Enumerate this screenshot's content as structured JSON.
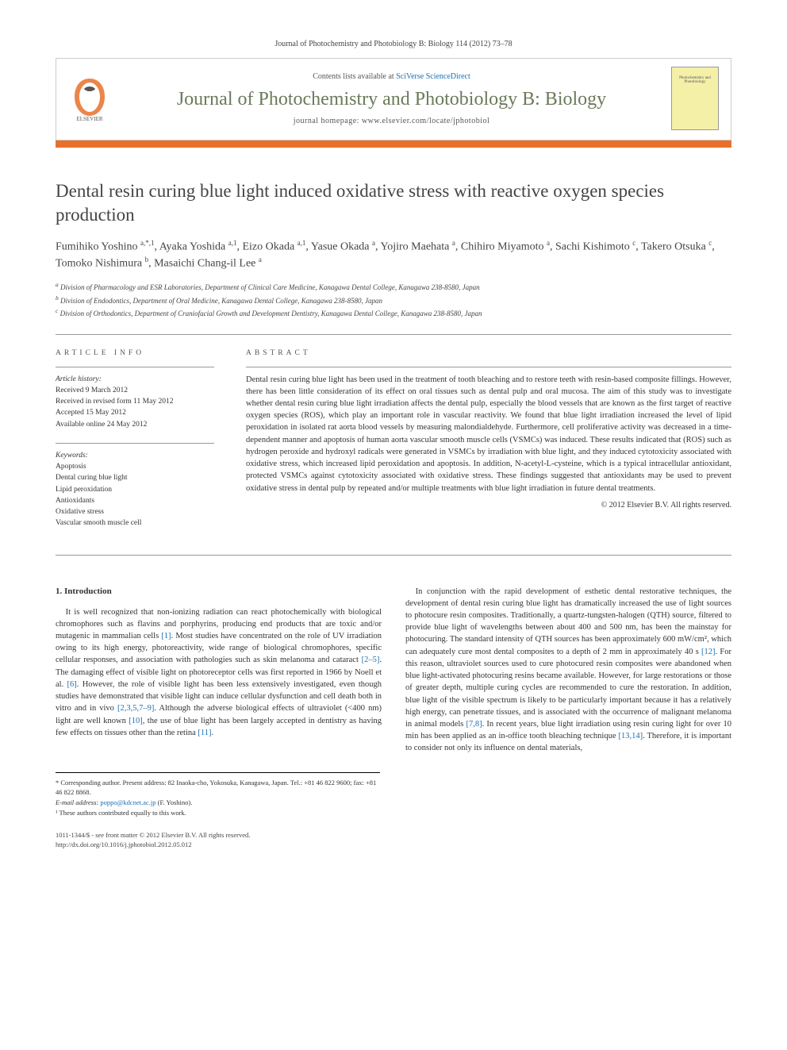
{
  "citation": "Journal of Photochemistry and Photobiology B: Biology 114 (2012) 73–78",
  "header": {
    "contents_prefix": "Contents lists available at ",
    "contents_link": "SciVerse ScienceDirect",
    "journal": "Journal of Photochemistry and Photobiology B: Biology",
    "homepage_label": "journal homepage: ",
    "homepage_url": "www.elsevier.com/locate/jphotobiol",
    "cover_text": "Photochemistry and Photobiology",
    "colors": {
      "orange_bar": "#e8702a",
      "journal_text": "#6b7a5a",
      "link": "#1b6fb3",
      "cover_bg": "#f5f0a8"
    }
  },
  "title": "Dental resin curing blue light induced oxidative stress with reactive oxygen species production",
  "authors_html": "Fumihiko Yoshino <sup>a,*,1</sup>, Ayaka Yoshida <sup>a,1</sup>, Eizo Okada <sup>a,1</sup>, Yasue Okada <sup>a</sup>, Yojiro Maehata <sup>a</sup>, Chihiro Miyamoto <sup>a</sup>, Sachi Kishimoto <sup>c</sup>, Takero Otsuka <sup>c</sup>, Tomoko Nishimura <sup>b</sup>, Masaichi Chang-il Lee <sup>a</sup>",
  "affiliations": {
    "a": "Division of Pharmacology and ESR Laboratories, Department of Clinical Care Medicine, Kanagawa Dental College, Kanagawa 238-8580, Japan",
    "b": "Division of Endodontics, Department of Oral Medicine, Kanagawa Dental College, Kanagawa 238-8580, Japan",
    "c": "Division of Orthodontics, Department of Craniofacial Growth and Development Dentistry, Kanagawa Dental College, Kanagawa 238-8580, Japan"
  },
  "article_info": {
    "head": "ARTICLE INFO",
    "history_label": "Article history:",
    "history": [
      "Received 9 March 2012",
      "Received in revised form 11 May 2012",
      "Accepted 15 May 2012",
      "Available online 24 May 2012"
    ],
    "keywords_label": "Keywords:",
    "keywords": [
      "Apoptosis",
      "Dental curing blue light",
      "Lipid peroxidation",
      "Antioxidants",
      "Oxidative stress",
      "Vascular smooth muscle cell"
    ]
  },
  "abstract": {
    "head": "ABSTRACT",
    "text": "Dental resin curing blue light has been used in the treatment of tooth bleaching and to restore teeth with resin-based composite fillings. However, there has been little consideration of its effect on oral tissues such as dental pulp and oral mucosa. The aim of this study was to investigate whether dental resin curing blue light irradiation affects the dental pulp, especially the blood vessels that are known as the first target of reactive oxygen species (ROS), which play an important role in vascular reactivity. We found that blue light irradiation increased the level of lipid peroxidation in isolated rat aorta blood vessels by measuring malondialdehyde. Furthermore, cell proliferative activity was decreased in a time-dependent manner and apoptosis of human aorta vascular smooth muscle cells (VSMCs) was induced. These results indicated that (ROS) such as hydrogen peroxide and hydroxyl radicals were generated in VSMCs by irradiation with blue light, and they induced cytotoxicity associated with oxidative stress, which increased lipid peroxidation and apoptosis. In addition, N-acetyl-L-cysteine, which is a typical intracellular antioxidant, protected VSMCs against cytotoxicity associated with oxidative stress. These findings suggested that antioxidants may be used to prevent oxidative stress in dental pulp by repeated and/or multiple treatments with blue light irradiation in future dental treatments.",
    "copyright": "© 2012 Elsevier B.V. All rights reserved."
  },
  "body": {
    "section1_title": "1. Introduction",
    "p1_a": "It is well recognized that non-ionizing radiation can react photochemically with biological chromophores such as flavins and porphyrins, producing end products that are toxic and/or mutagenic in mammalian cells ",
    "ref1": "[1]",
    "p1_b": ". Most studies have concentrated on the role of UV irradiation owing to its high energy, photoreactivity, wide range of biological chromophores, specific cellular responses, and association with pathologies such as skin melanoma and cataract ",
    "ref2": "[2–5]",
    "p1_c": ". The damaging effect of visible light on photoreceptor cells was first reported in 1966 by Noell et al. ",
    "ref6": "[6]",
    "p1_d": ". However, the role of visible light has been less extensively investigated, even though studies have demonstrated that visible light can induce cellular dysfunction and cell death both in vitro and in vivo ",
    "ref2b": "[2,3,5,7–9]",
    "p1_e": ". Although the adverse biological effects of ultraviolet (<400 nm) light are well known ",
    "ref10": "[10]",
    "p1_f": ", the use of blue light has been largely ",
    "p2_a": "accepted in dentistry as having few effects on tissues other than the retina ",
    "ref11": "[11]",
    "p2_b": ".",
    "p3_a": "In conjunction with the rapid development of esthetic dental restorative techniques, the development of dental resin curing blue light has dramatically increased the use of light sources to photocure resin composites. Traditionally, a quartz-tungsten-halogen (QTH) source, filtered to provide blue light of wavelengths between about 400 and 500 nm, has been the mainstay for photocuring. The standard intensity of QTH sources has been approximately 600 mW/cm², which can adequately cure most dental composites to a depth of 2 mm in approximately 40 s ",
    "ref12": "[12]",
    "p3_b": ". For this reason, ultraviolet sources used to cure photocured resin composites were abandoned when blue light-activated photocuring resins became available. However, for large restorations or those of greater depth, multiple curing cycles are recommended to cure the restoration. In addition, blue light of the visible spectrum is likely to be particularly important because it has a relatively high energy, can penetrate tissues, and is associated with the occurrence of malignant melanoma in animal models ",
    "ref78": "[7,8]",
    "p3_c": ". In recent years, blue light irradiation using resin curing light for over 10 min has been applied as an in-office tooth bleaching technique ",
    "ref1314": "[13,14]",
    "p3_d": ". Therefore, it is important to consider not only its influence on dental materials,"
  },
  "footnotes": {
    "corr": "* Corresponding author. Present address: 82 Inaoka-cho, Yokosuka, Kanagawa, Japan. Tel.: +81 46 822 9600; fax: +81 46 822 8868.",
    "email_label": "E-mail address: ",
    "email": "poppo@kdcnet.ac.jp",
    "email_suffix": " (F. Yoshino).",
    "note1": "¹ These authors contributed equally to this work."
  },
  "bottom": {
    "line1": "1011-1344/$ - see front matter © 2012 Elsevier B.V. All rights reserved.",
    "line2": "http://dx.doi.org/10.1016/j.jphotobiol.2012.05.012"
  }
}
